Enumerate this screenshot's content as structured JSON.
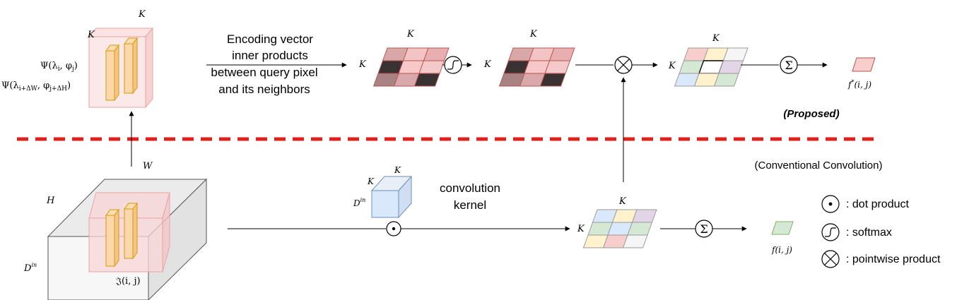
{
  "labels": {
    "k": "K",
    "w": "W",
    "h": "H",
    "d_in": "D",
    "d_in_sup": "in",
    "psi_1": "Ψ(λ",
    "psi_1_sub_i": "i",
    "psi_1_mid": ", φ",
    "psi_1_sub_j": "j",
    "psi_1_end": ")",
    "psi_2": "Ψ(λ",
    "psi_2_sub": "i+ΔW",
    "psi_2_mid": ", φ",
    "psi_2_sub2": "j+ΔH",
    "psi_2_end": ")",
    "feature_map": "𝔍(i, j)",
    "f_star": "f",
    "f_star_sup": "*",
    "f_star_args": "(i, j)",
    "f_conv": "f(i, j)",
    "sigma": "Σ"
  },
  "encoding_text": {
    "line1": "Encoding vector",
    "line2": "inner products",
    "line3": "between query pixel",
    "line4": "and its neighbors"
  },
  "kernel_text": {
    "line1": "convolution",
    "line2": "kernel"
  },
  "proposed_label": "(Proposed)",
  "conventional_label": "(Conventional Convolution)",
  "legend": [
    {
      "icon": "dot-product-icon",
      "text": ": dot product"
    },
    {
      "icon": "softmax-icon",
      "text": ": softmax"
    },
    {
      "icon": "pointwise-product-icon",
      "text": ": pointwise product"
    }
  ],
  "colors": {
    "separator": "#e0201b",
    "pink_fill": "#f8d0d0",
    "pink_stroke": "#b85450",
    "orange_fill": "#fad7ac",
    "orange_stroke": "#b46504",
    "blue_fill": "#dae8fc",
    "blue_stroke": "#6c8ebf",
    "green_fill": "#d5e8d4",
    "yellow_fill": "#fff2cc",
    "purple_fill": "#e1d5e7",
    "gray_fill": "#f5f5f5"
  }
}
